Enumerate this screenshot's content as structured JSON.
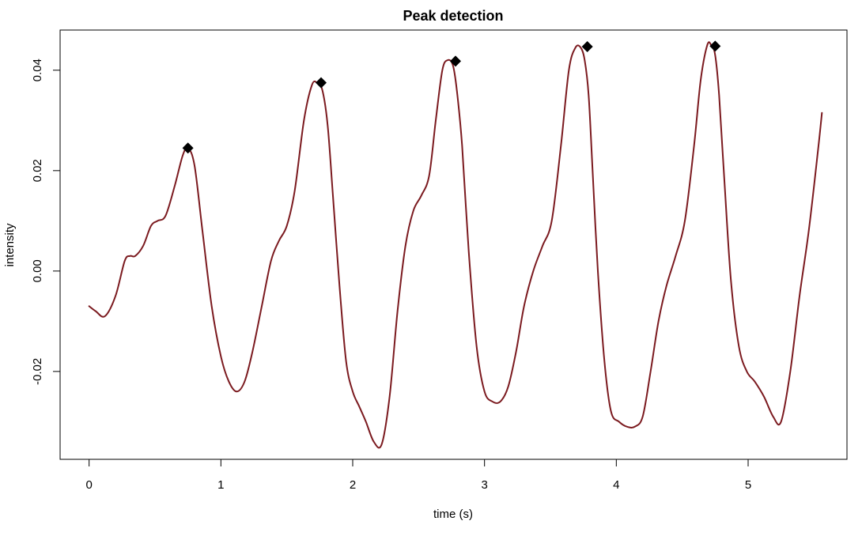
{
  "chart_data": {
    "type": "line",
    "title": "Peak detection",
    "xlabel": "time (s)",
    "ylabel": "intensity",
    "xlim": [
      -0.22,
      5.75
    ],
    "ylim": [
      -0.0375,
      0.048
    ],
    "x_ticks": [
      0,
      1,
      2,
      3,
      4,
      5
    ],
    "x_tick_labels": [
      "0",
      "1",
      "2",
      "3",
      "4",
      "5"
    ],
    "y_ticks": [
      -0.02,
      0,
      0.02,
      0.04
    ],
    "y_tick_labels": [
      "-0.02",
      "0.00",
      "0.02",
      "0.04"
    ],
    "grid": false,
    "legend": "none",
    "line_color": "#7b1a1f",
    "marker_color": "#000000",
    "series": [
      {
        "x": [
          0.0,
          0.05,
          0.12,
          0.2,
          0.27,
          0.31,
          0.35,
          0.41,
          0.47,
          0.52,
          0.58,
          0.65,
          0.71,
          0.75,
          0.8,
          0.86,
          0.93,
          1.0,
          1.06,
          1.12,
          1.18,
          1.24,
          1.31,
          1.38,
          1.44,
          1.5,
          1.56,
          1.63,
          1.69,
          1.73,
          1.77,
          1.81,
          1.85,
          1.9,
          1.95,
          2.0,
          2.05,
          2.1,
          2.16,
          2.22,
          2.28,
          2.34,
          2.4,
          2.46,
          2.52,
          2.58,
          2.63,
          2.68,
          2.72,
          2.76,
          2.79,
          2.83,
          2.88,
          2.94,
          3.0,
          3.06,
          3.12,
          3.18,
          3.24,
          3.3,
          3.37,
          3.44,
          3.51,
          3.58,
          3.64,
          3.69,
          3.73,
          3.76,
          3.79,
          3.82,
          3.86,
          3.91,
          3.96,
          4.02,
          4.08,
          4.14,
          4.2,
          4.26,
          4.32,
          4.38,
          4.45,
          4.52,
          4.59,
          4.64,
          4.69,
          4.72,
          4.75,
          4.78,
          4.82,
          4.87,
          4.93,
          4.99,
          5.05,
          5.12,
          5.19,
          5.25,
          5.32,
          5.39,
          5.46,
          5.53,
          5.56
        ],
        "y": [
          -0.007,
          -0.008,
          -0.009,
          -0.005,
          0.002,
          0.003,
          0.003,
          0.005,
          0.009,
          0.01,
          0.011,
          0.017,
          0.023,
          0.0245,
          0.021,
          0.008,
          -0.007,
          -0.017,
          -0.022,
          -0.024,
          -0.022,
          -0.016,
          -0.007,
          0.002,
          0.006,
          0.009,
          0.016,
          0.03,
          0.037,
          0.0375,
          0.036,
          0.029,
          0.015,
          -0.003,
          -0.018,
          -0.024,
          -0.027,
          -0.03,
          -0.034,
          -0.0345,
          -0.025,
          -0.008,
          0.005,
          0.012,
          0.015,
          0.019,
          0.03,
          0.04,
          0.042,
          0.041,
          0.036,
          0.025,
          0.004,
          -0.015,
          -0.024,
          -0.026,
          -0.026,
          -0.023,
          -0.016,
          -0.007,
          0.0,
          0.005,
          0.01,
          0.025,
          0.04,
          0.0445,
          0.0445,
          0.042,
          0.035,
          0.02,
          0.0,
          -0.018,
          -0.028,
          -0.03,
          -0.031,
          -0.031,
          -0.029,
          -0.02,
          -0.01,
          -0.003,
          0.003,
          0.01,
          0.025,
          0.038,
          0.045,
          0.045,
          0.043,
          0.035,
          0.018,
          -0.002,
          -0.015,
          -0.02,
          -0.022,
          -0.025,
          -0.029,
          -0.03,
          -0.02,
          -0.005,
          0.008,
          0.024,
          0.0315
        ]
      }
    ],
    "peaks": {
      "x": [
        0.75,
        1.76,
        2.78,
        3.78,
        4.75
      ],
      "y": [
        0.0245,
        0.0375,
        0.0418,
        0.0447,
        0.0448
      ]
    }
  }
}
